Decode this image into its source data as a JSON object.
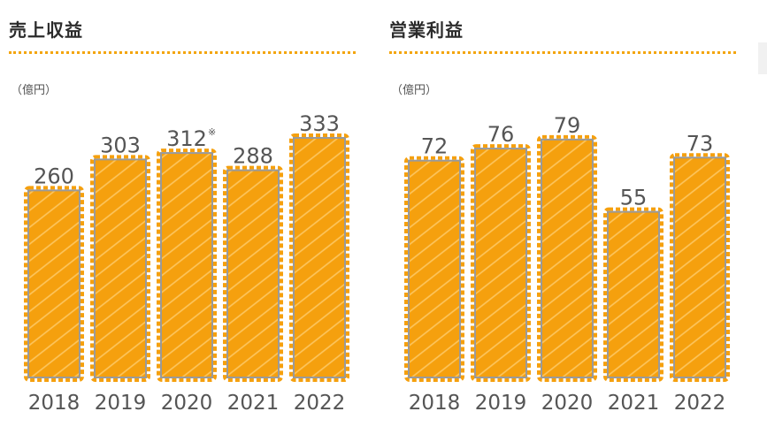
{
  "colors": {
    "accent": "#f39c12",
    "bar_fill": "#f5a00e",
    "bar_edge": "#9a9a9a",
    "hatch": "#ffd27a",
    "text": "#555555"
  },
  "chart_data": [
    {
      "type": "bar",
      "title": "売上収益",
      "unit": "（億円）",
      "categories": [
        "2018",
        "2019",
        "2020",
        "2021",
        "2022"
      ],
      "values": [
        260,
        303,
        312,
        288,
        333
      ],
      "value_labels": [
        "260",
        "303",
        "312",
        "288",
        "333"
      ],
      "notes": [
        "",
        "",
        "※",
        "",
        ""
      ],
      "ylim": [
        0,
        360
      ]
    },
    {
      "type": "bar",
      "title": "営業利益",
      "unit": "（億円）",
      "categories": [
        "2018",
        "2019",
        "2020",
        "2021",
        "2022"
      ],
      "values": [
        72,
        76,
        79,
        55,
        73
      ],
      "value_labels": [
        "72",
        "76",
        "79",
        "55",
        "73"
      ],
      "notes": [
        "",
        "",
        "",
        "",
        ""
      ],
      "ylim": [
        0,
        86
      ]
    }
  ]
}
